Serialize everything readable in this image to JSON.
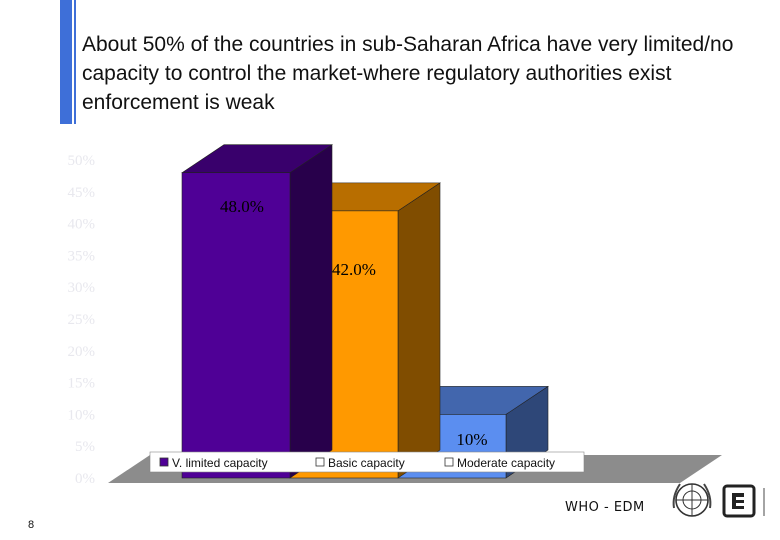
{
  "title": "About 50% of the countries in sub-Saharan Africa have very limited/no capacity to control the market-where regulatory authorities exist enforcement is weak",
  "footer": {
    "label": "WHO - EDM",
    "page_number": "8"
  },
  "logos": {
    "un_emblem_icon": "un-emblem-icon",
    "edm_logo_icon": "edm-logo-icon"
  },
  "colors": {
    "accent": "#3e6fd8",
    "floor": "#8c8c8c",
    "axis_text": "#e8e8ee"
  },
  "chart_data": {
    "type": "bar",
    "style": "3d",
    "categories": [
      "Very limited capacity",
      "Basic capacity",
      "Moderate capacity"
    ],
    "values": [
      48,
      42,
      10
    ],
    "data_labels": [
      "48.0%",
      "42.0%",
      "10%"
    ],
    "legend": [
      "V. limited capacity",
      "Basic capacity",
      "Moderate capacity"
    ],
    "legend_position": "bottom",
    "yticks": [
      "0%",
      "5%",
      "10%",
      "15%",
      "20%",
      "25%",
      "30%",
      "35%",
      "40%",
      "45%",
      "50%"
    ],
    "ylim": [
      0,
      50
    ],
    "colors": [
      "#4f0096",
      "#ff9900",
      "#5b8ef0"
    ],
    "xlabel": "",
    "ylabel": ""
  }
}
